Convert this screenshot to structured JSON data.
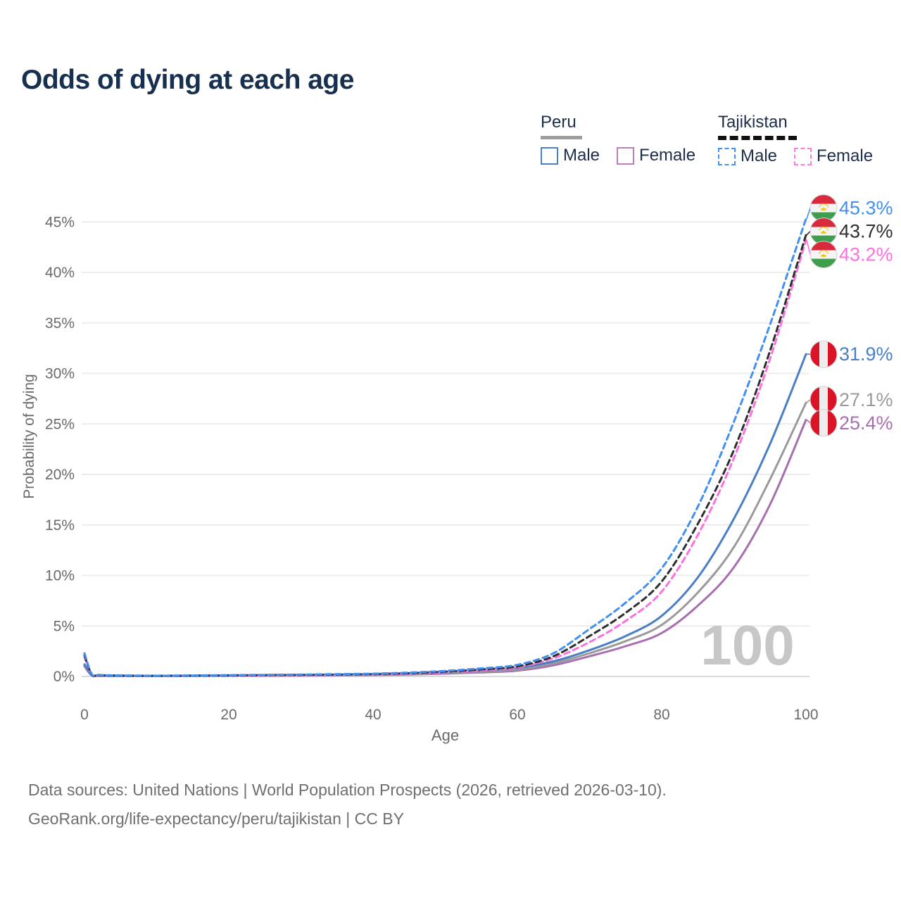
{
  "title": "Odds of dying at each age",
  "watermark": "100",
  "legend": {
    "groups": [
      {
        "country": "Peru",
        "line_style": "solid",
        "swatch_color": "#9e9e9e",
        "items": [
          {
            "label": "Male",
            "color": "#4e7fc1",
            "dashed": false
          },
          {
            "label": "Female",
            "color": "#bc7fbe",
            "dashed": false
          }
        ]
      },
      {
        "country": "Tajikistan",
        "line_style": "dashed",
        "swatch_color": "#111111",
        "items": [
          {
            "label": "Male",
            "color": "#4292f5",
            "dashed": true
          },
          {
            "label": "Female",
            "color": "#fc7ce0",
            "dashed": true
          }
        ]
      }
    ]
  },
  "footer": {
    "line1": "Data sources: United Nations | World Population Prospects (2026, retrieved 2026-03-10).",
    "line2": "GeoRank.org/life-expectancy/peru/tajikistan | CC BY"
  },
  "chart_data": {
    "type": "line",
    "title": "Odds of dying at each age",
    "xlabel": "Age",
    "ylabel": "Probability of dying",
    "xlim": [
      0,
      100
    ],
    "ylim": [
      0,
      47
    ],
    "grid": true,
    "legend_position": "top-right",
    "x_ticks": [
      0,
      20,
      40,
      60,
      80,
      100
    ],
    "y_ticks": [
      {
        "value": 0,
        "label": "0%"
      },
      {
        "value": 5,
        "label": "5%"
      },
      {
        "value": 10,
        "label": "10%"
      },
      {
        "value": 15,
        "label": "15%"
      },
      {
        "value": 20,
        "label": "20%"
      },
      {
        "value": 25,
        "label": "25%"
      },
      {
        "value": 30,
        "label": "30%"
      },
      {
        "value": 35,
        "label": "35%"
      },
      {
        "value": 40,
        "label": "40%"
      },
      {
        "value": 45,
        "label": "45%"
      }
    ],
    "ages": [
      0,
      1,
      2,
      5,
      10,
      15,
      20,
      25,
      30,
      35,
      40,
      45,
      50,
      55,
      60,
      65,
      70,
      75,
      80,
      85,
      90,
      95,
      100
    ],
    "series": [
      {
        "name": "Peru Female",
        "country": "Peru",
        "sex": "Female",
        "color": "#a76fb0",
        "dashed": false,
        "flag": "peru",
        "end_label": "25.4%",
        "values": [
          1.0,
          0.1,
          0.06,
          0.045,
          0.04,
          0.05,
          0.06,
          0.08,
          0.1,
          0.12,
          0.14,
          0.19,
          0.28,
          0.4,
          0.58,
          1.1,
          2.0,
          3.0,
          4.3,
          7.0,
          10.8,
          17.0,
          25.4
        ]
      },
      {
        "name": "Peru Both sexes",
        "country": "Peru",
        "sex": "Both",
        "color": "#9a9a9a",
        "dashed": false,
        "flag": "peru",
        "end_label": "27.1%",
        "values": [
          1.1,
          0.11,
          0.07,
          0.05,
          0.045,
          0.06,
          0.08,
          0.1,
          0.12,
          0.14,
          0.17,
          0.23,
          0.34,
          0.48,
          0.7,
          1.3,
          2.3,
          3.5,
          5.1,
          8.3,
          12.8,
          19.5,
          27.1
        ]
      },
      {
        "name": "Peru Male",
        "country": "Peru",
        "sex": "Male",
        "color": "#4b7fc4",
        "dashed": false,
        "flag": "peru",
        "end_label": "31.9%",
        "values": [
          1.2,
          0.12,
          0.08,
          0.06,
          0.05,
          0.07,
          0.1,
          0.12,
          0.14,
          0.16,
          0.2,
          0.28,
          0.4,
          0.57,
          0.85,
          1.5,
          2.6,
          4.0,
          6.0,
          9.8,
          15.6,
          23.0,
          31.9
        ]
      },
      {
        "name": "Tajikistan Female",
        "country": "Tajikistan",
        "sex": "Female",
        "color": "#fb71e0",
        "dashed": true,
        "flag": "tajikistan",
        "end_label": "43.2%",
        "values": [
          1.9,
          0.2,
          0.12,
          0.08,
          0.06,
          0.07,
          0.09,
          0.11,
          0.13,
          0.16,
          0.2,
          0.28,
          0.42,
          0.6,
          0.9,
          1.8,
          3.4,
          5.5,
          8.4,
          14.0,
          21.6,
          31.4,
          43.2
        ]
      },
      {
        "name": "Tajikistan Both sexes",
        "country": "Tajikistan",
        "sex": "Both",
        "color": "#2e2e2e",
        "dashed": true,
        "flag": "tajikistan",
        "end_label": "43.7%",
        "values": [
          2.1,
          0.22,
          0.13,
          0.09,
          0.07,
          0.09,
          0.11,
          0.14,
          0.16,
          0.19,
          0.24,
          0.33,
          0.48,
          0.7,
          1.0,
          2.0,
          4.0,
          6.3,
          9.4,
          15.1,
          22.4,
          32.2,
          43.7
        ]
      },
      {
        "name": "Tajikistan Male",
        "country": "Tajikistan",
        "sex": "Male",
        "color": "#418ff0",
        "dashed": true,
        "flag": "tajikistan",
        "end_label": "45.3%",
        "values": [
          2.3,
          0.25,
          0.15,
          0.1,
          0.08,
          0.1,
          0.13,
          0.16,
          0.19,
          0.23,
          0.28,
          0.38,
          0.55,
          0.8,
          1.15,
          2.3,
          4.7,
          7.3,
          10.7,
          16.8,
          25.2,
          34.8,
          45.3
        ]
      }
    ]
  }
}
